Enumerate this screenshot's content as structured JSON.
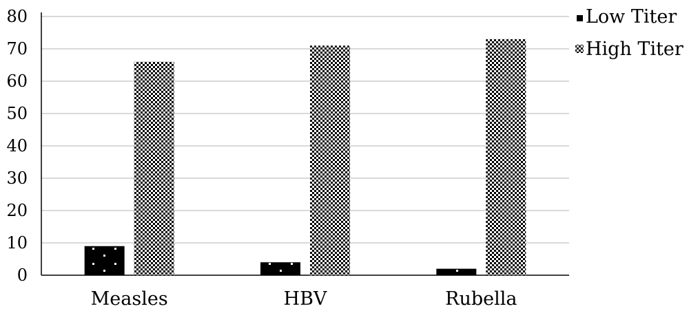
{
  "chart_data": {
    "type": "bar",
    "categories": [
      "Measles",
      "HBV",
      "Rubella"
    ],
    "series": [
      {
        "name": "Low Titer",
        "values": [
          9,
          4,
          2
        ],
        "pattern": "solid-black-with-white-dots"
      },
      {
        "name": "High Titer",
        "values": [
          66,
          71,
          73
        ],
        "pattern": "black-white-checkered"
      }
    ],
    "ylim": [
      0,
      80
    ],
    "yticks": [
      0,
      10,
      20,
      30,
      40,
      50,
      60,
      70,
      80
    ],
    "grid": true,
    "legend": "top-right",
    "xlabel": "",
    "ylabel": "",
    "title": ""
  },
  "colors": {
    "bar": "#000000",
    "grid": "#d9d9d9",
    "axis": "#000000",
    "background": "#ffffff"
  }
}
